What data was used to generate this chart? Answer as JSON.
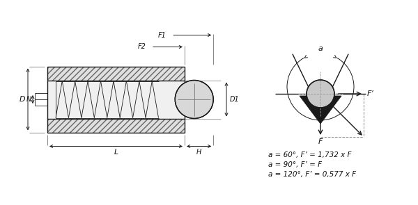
{
  "bg_color": "#ffffff",
  "line_color": "#1a1a1a",
  "text_color": "#111111",
  "formula_lines": [
    "a = 60°, F’ = 1,732 x F",
    "a = 90°, F’ = F",
    "a = 120°, F’ = 0,577 x F"
  ],
  "fig_width": 6.0,
  "fig_height": 2.95,
  "dpi": 100
}
